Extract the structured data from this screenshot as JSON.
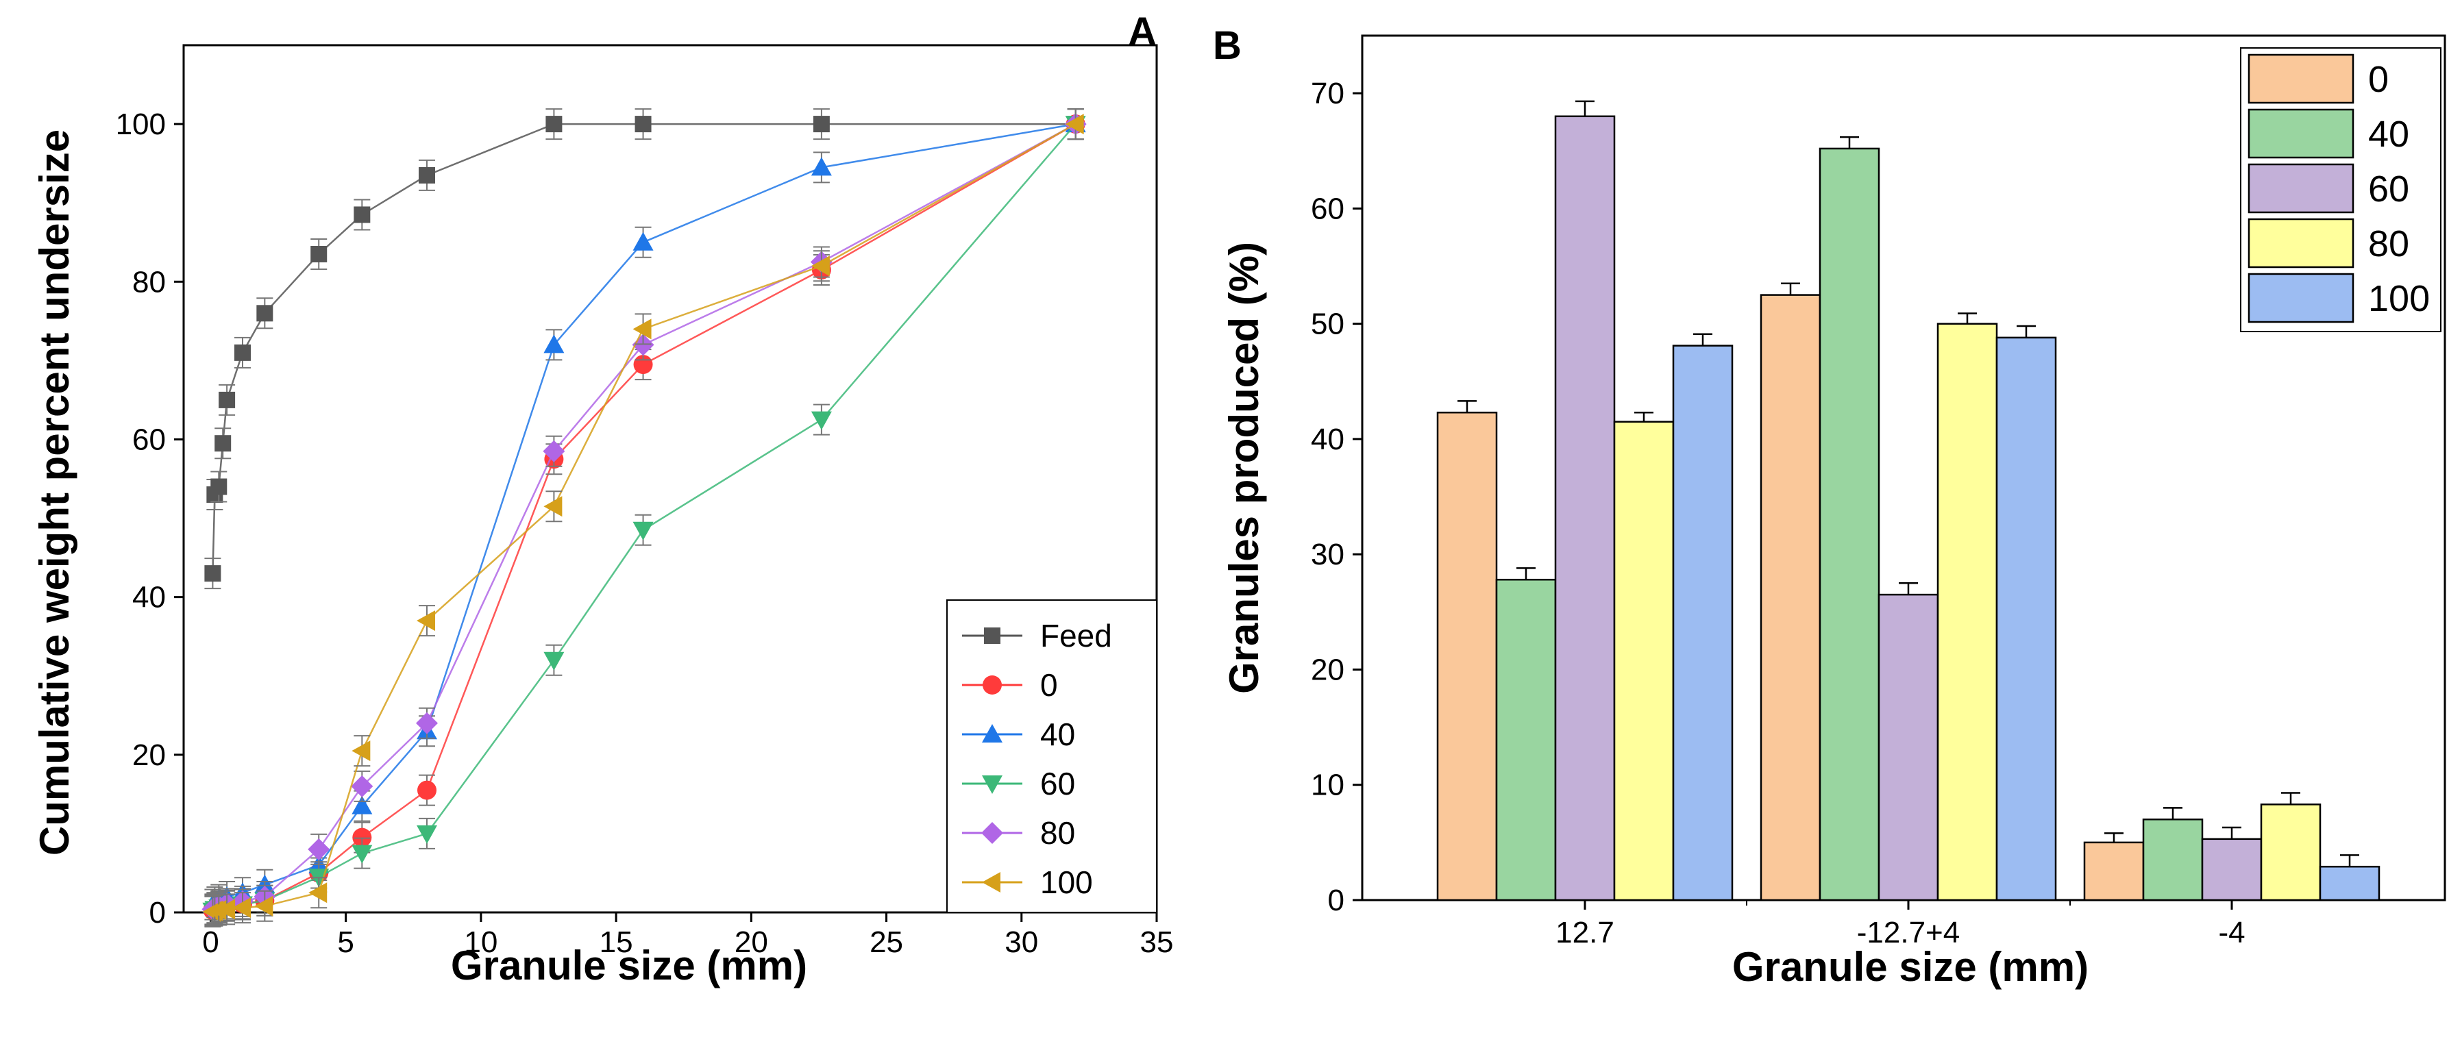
{
  "chart_data": [
    {
      "type": "line",
      "panel": "A",
      "xlabel": "Granule size (mm)",
      "ylabel": "Cumulative weight percent undersize",
      "xlim": [
        -1,
        35
      ],
      "ylim": [
        0,
        110
      ],
      "xticks": [
        0,
        5,
        10,
        15,
        20,
        25,
        30,
        35
      ],
      "yticks": [
        0,
        20,
        40,
        60,
        80,
        100
      ],
      "legend_position": "bottom-right",
      "series": [
        {
          "name": "Feed",
          "color": "#555555",
          "marker": "square",
          "x": [
            0.075,
            0.15,
            0.3,
            0.45,
            0.6,
            1.18,
            2.0,
            4.0,
            5.6,
            8.0,
            12.7,
            16.0,
            22.6,
            32.0
          ],
          "y": [
            43,
            53,
            54,
            59.5,
            65,
            71,
            76,
            83.5,
            88.5,
            93.5,
            100,
            100,
            100,
            100
          ]
        },
        {
          "name": "0",
          "color": "#ff3b3b",
          "marker": "circle",
          "x": [
            0.075,
            0.15,
            0.3,
            0.6,
            1.18,
            2.0,
            4.0,
            5.6,
            8.0,
            12.7,
            16.0,
            22.6,
            32.0
          ],
          "y": [
            0.3,
            0.5,
            0.7,
            0.9,
            1.1,
            1.5,
            5,
            9.5,
            15.5,
            57.5,
            69.5,
            81.5,
            100
          ]
        },
        {
          "name": "40",
          "color": "#1f77e8",
          "marker": "triangle-up",
          "x": [
            0.075,
            0.15,
            0.3,
            0.6,
            1.18,
            2.0,
            4.0,
            5.6,
            8.0,
            12.7,
            16.0,
            22.6,
            32.0
          ],
          "y": [
            1,
            1.3,
            1.6,
            2,
            2.5,
            3.5,
            6,
            13.5,
            23,
            72,
            85,
            94.5,
            100
          ]
        },
        {
          "name": "60",
          "color": "#3cb878",
          "marker": "triangle-down",
          "x": [
            0.075,
            0.15,
            0.3,
            0.6,
            1.18,
            2.0,
            4.0,
            5.6,
            8.0,
            12.7,
            16.0,
            22.6,
            32.0
          ],
          "y": [
            0.2,
            0.4,
            0.6,
            0.8,
            1,
            1.5,
            4.5,
            7.5,
            10,
            32,
            48.5,
            62.5,
            100
          ]
        },
        {
          "name": "80",
          "color": "#b066e6",
          "marker": "diamond",
          "x": [
            0.075,
            0.15,
            0.3,
            0.6,
            1.18,
            2.0,
            4.0,
            5.6,
            8.0,
            12.7,
            16.0,
            22.6,
            32.0
          ],
          "y": [
            0.4,
            0.6,
            0.8,
            1.1,
            1.4,
            2,
            8,
            16,
            24,
            58.5,
            72,
            82.5,
            100
          ]
        },
        {
          "name": "100",
          "color": "#d6a01a",
          "marker": "triangle-left",
          "x": [
            0.075,
            0.15,
            0.3,
            0.6,
            1.18,
            2.0,
            4.0,
            5.6,
            8.0,
            12.7,
            16.0,
            22.6,
            32.0
          ],
          "y": [
            0.1,
            0.2,
            0.3,
            0.4,
            0.6,
            0.8,
            2.5,
            20.5,
            37,
            51.5,
            74,
            82,
            100
          ]
        }
      ]
    },
    {
      "type": "bar",
      "panel": "B",
      "xlabel": "Granule size (mm)",
      "ylabel": "Granules produced (%)",
      "ylim": [
        0,
        75
      ],
      "yticks": [
        0,
        10,
        20,
        30,
        40,
        50,
        60,
        70
      ],
      "categories": [
        "12.7",
        "-12.7+4",
        "-4"
      ],
      "legend_position": "top-right",
      "series": [
        {
          "name": "0",
          "color": "#fac89a",
          "values": [
            42.3,
            52.5,
            5.0
          ],
          "errors": [
            1.0,
            1.0,
            0.8
          ]
        },
        {
          "name": "40",
          "color": "#99d5a0",
          "values": [
            27.8,
            65.2,
            7.0
          ],
          "errors": [
            1.0,
            1.0,
            1.0
          ]
        },
        {
          "name": "60",
          "color": "#c3b0d8",
          "values": [
            68.0,
            26.5,
            5.3
          ],
          "errors": [
            1.3,
            1.0,
            1.0
          ]
        },
        {
          "name": "80",
          "color": "#ffff9c",
          "values": [
            41.5,
            50.0,
            8.3
          ],
          "errors": [
            0.8,
            0.9,
            1.0
          ]
        },
        {
          "name": "100",
          "color": "#9cbcf2",
          "values": [
            48.1,
            48.8,
            2.9
          ],
          "errors": [
            1.0,
            1.0,
            1.0
          ]
        }
      ]
    }
  ]
}
